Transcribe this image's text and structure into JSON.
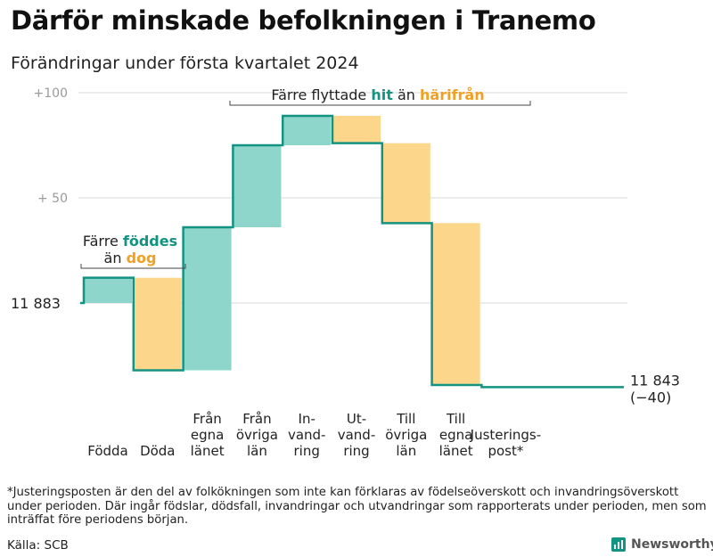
{
  "title": "Därför minskade befolkningen i Tranemo",
  "subtitle": "Förändringar under första kvartalet 2024",
  "footnote": "*Justeringsposten är den del av folkökningen som inte kan förklaras av födelseöverskott och invandringsöverskott under perioden. Där ingår födslar, dödsfall, invandringar och utvandringar som rapporterats under perioden, men som inträffat före periodens början.",
  "source": "Källa: SCB",
  "brand": "Newsworthy",
  "colors": {
    "positive": "#8ed5cb",
    "negative": "#fcd68b",
    "line": "#139381",
    "hit": "#139381",
    "harifran": "#f0a025",
    "grid": "#d8d8d8",
    "axis_label": "#9a9a9a"
  },
  "chart_data": {
    "type": "waterfall",
    "start_value": 11883,
    "start_label": "11  883",
    "end_value": 11843,
    "end_label": "11 843",
    "end_change_label": "(−40)",
    "y_ticks": [
      {
        "value": 100,
        "label": "+100"
      },
      {
        "value": 50,
        "label": "+  50"
      }
    ],
    "ylim": [
      -40,
      100
    ],
    "grid": true,
    "steps": [
      {
        "label": "Födda",
        "change": 12
      },
      {
        "label": "Döda",
        "change": -44
      },
      {
        "label": "Från\negna\nlänet",
        "change": 68
      },
      {
        "label": "Från\növriga\nlän",
        "change": 39
      },
      {
        "label": "In-\nvand-\nring",
        "change": 14
      },
      {
        "label": "Ut-\nvand-\nring",
        "change": -13
      },
      {
        "label": "Till\növriga\nlän",
        "change": -38
      },
      {
        "label": "Till\negna\nlänet",
        "change": -77
      },
      {
        "label": "Justerings-\npost*",
        "change": -1
      }
    ],
    "annotations": {
      "births": {
        "line1_prefix": "Färre ",
        "line1_highlight": "föddes",
        "line2_prefix": "än ",
        "line2_highlight": "dog"
      },
      "migration": {
        "prefix": "Färre flyttade ",
        "highlight1": "hit",
        "middle": " än ",
        "highlight2": "härifrån"
      }
    }
  }
}
